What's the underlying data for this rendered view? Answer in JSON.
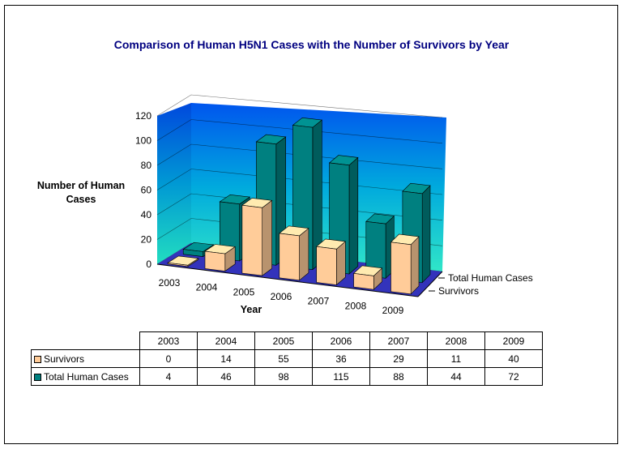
{
  "chart_data": {
    "type": "bar",
    "title": "Comparison of Human H5N1 Cases with the Number of Survivors by Year",
    "xlabel": "Year",
    "ylabel": "Number of Human Cases",
    "categories": [
      "2003",
      "2004",
      "2005",
      "2006",
      "2007",
      "2008",
      "2009"
    ],
    "series": [
      {
        "name": "Survivors",
        "values": [
          0,
          14,
          55,
          36,
          29,
          11,
          40
        ],
        "color": "#FFCC99"
      },
      {
        "name": "Total Human Cases",
        "values": [
          4,
          46,
          98,
          115,
          88,
          44,
          72
        ],
        "color": "#008080"
      }
    ],
    "yticks": [
      "0",
      "20",
      "40",
      "60",
      "80",
      "100",
      "120"
    ],
    "ylim": [
      0,
      120
    ],
    "grid": true,
    "legend": "data-table"
  }
}
